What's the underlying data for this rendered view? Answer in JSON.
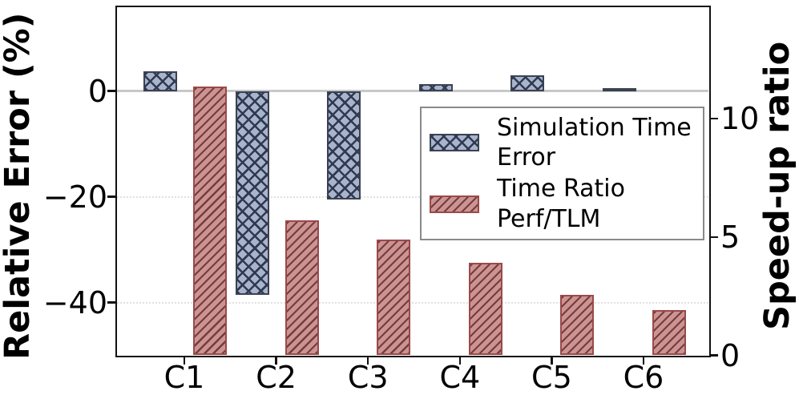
{
  "chart_data": {
    "type": "bar",
    "title": "",
    "categories": [
      "C1",
      "C2",
      "C3",
      "C4",
      "C5",
      "C6"
    ],
    "series": [
      {
        "name": "Simulation Time Error",
        "axis": "left",
        "values": [
          3.7,
          -38.6,
          -20.5,
          1.3,
          2.9,
          0.6
        ],
        "fill": "#a8b4cc",
        "hatch_color": "#2f3950",
        "edge_color": "#3a4252",
        "hatch_style": "cross"
      },
      {
        "name": "Time Ratio Perf/TLM",
        "axis": "right",
        "values": [
          11.35,
          5.7,
          4.9,
          3.9,
          2.55,
          1.9
        ],
        "fill": "#cf9292",
        "hatch_color": "#6e403d",
        "edge_color": "#9a4a4a",
        "hatch_style": "diagonal"
      }
    ],
    "left_axis": {
      "label": "Relative Error (%)",
      "range": [
        -50,
        16
      ],
      "ticks": [
        {
          "label": "0",
          "value": 0
        },
        {
          "label": "−20",
          "value": -20
        },
        {
          "label": "−40",
          "value": -40
        }
      ]
    },
    "right_axis": {
      "label": "Speed-up ratio",
      "range": [
        0,
        14.75
      ],
      "ticks": [
        {
          "label": "0",
          "value": 0
        },
        {
          "label": "5",
          "value": 5
        },
        {
          "label": "10",
          "value": 10
        }
      ]
    },
    "legend": {
      "position": "upper-right",
      "entries": [
        {
          "series": "Simulation Time Error",
          "lines": [
            "Simulation Time",
            "Error"
          ]
        },
        {
          "series": "Time Ratio Perf/TLM",
          "lines": [
            "Time Ratio",
            "Perf/TLM"
          ]
        }
      ]
    },
    "grid": {
      "zero_line_color": "#c8c8c8",
      "minor_line_color": "#e0e0e0"
    },
    "spine_color": "#111111",
    "text_color": "#000000",
    "background_color": "#ffffff"
  }
}
